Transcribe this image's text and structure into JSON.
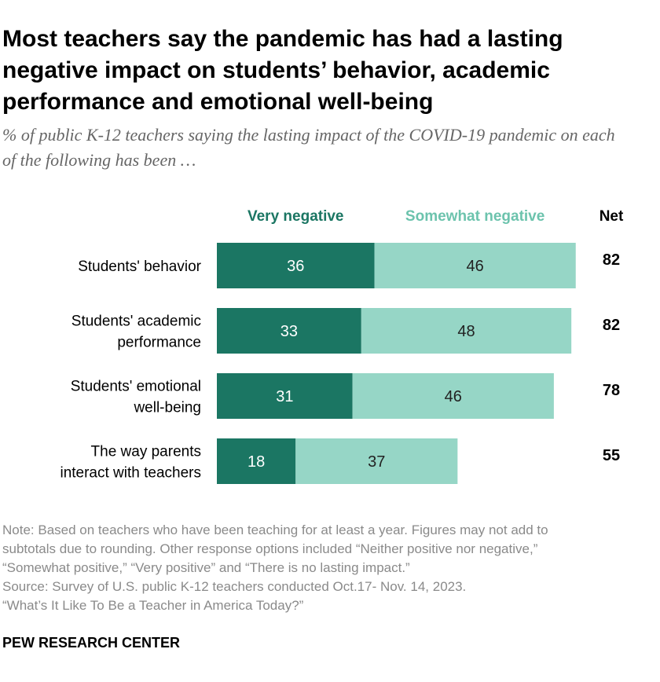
{
  "title": "Most teachers say the pandemic has had a lasting negative impact on students’ behavior, academic performance and emotional well-being",
  "subtitle": "% of public K-12 teachers saying the lasting impact of the COVID-19 pandemic on each of the following has been …",
  "colors": {
    "very_negative": "#1b7663",
    "somewhat_negative": "#96d6c6"
  },
  "chart_data": {
    "type": "bar",
    "orientation": "horizontal",
    "stacked": true,
    "categories": [
      [
        "Students' behavior"
      ],
      [
        "Students' academic",
        "performance"
      ],
      [
        "Students' emotional",
        "well-being"
      ],
      [
        "The way parents",
        "interact with teachers"
      ]
    ],
    "series": [
      {
        "name": "Very negative",
        "values": [
          36,
          33,
          31,
          18
        ]
      },
      {
        "name": "Somewhat negative",
        "values": [
          46,
          48,
          46,
          37
        ]
      }
    ],
    "net_label": "Net",
    "net": [
      82,
      82,
      78,
      55
    ],
    "xlim": [
      0,
      100
    ],
    "legend": "top"
  },
  "notes": [
    "Note: Based on teachers who have been teaching for at least a year. Figures may not add to",
    "subtotals due to rounding. Other response options included “Neither positive nor negative,”",
    "“Somewhat positive,” “Very positive” and “There is no lasting impact.”",
    "Source: Survey of U.S. public K-12 teachers conducted Oct.17- Nov. 14, 2023.",
    "“What’s It Like To Be a Teacher in America Today?”"
  ],
  "footer": "PEW RESEARCH CENTER"
}
